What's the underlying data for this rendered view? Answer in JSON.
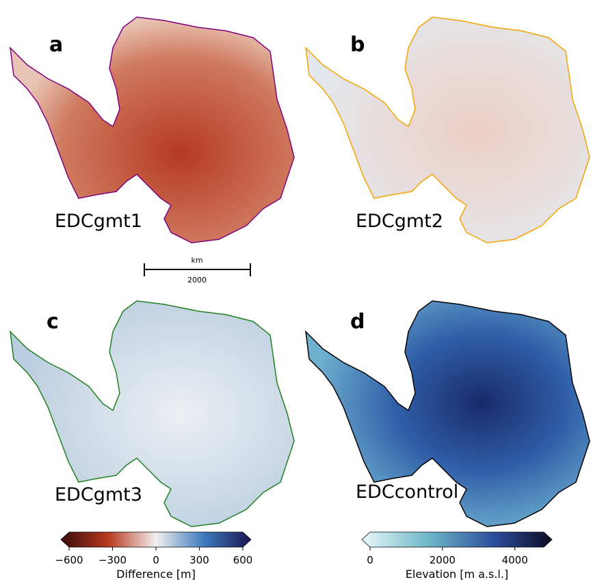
{
  "panels": [
    {
      "letter": "a",
      "label": "EDCgmt1"
    },
    {
      "letter": "b",
      "label": "EDCgmt2"
    },
    {
      "letter": "c",
      "label": "EDCgmt3"
    },
    {
      "letter": "d",
      "label": "EDCcontrol"
    }
  ],
  "scale_bar": {
    "unit": "km",
    "length": "2000"
  },
  "colorbars": [
    {
      "title": "Difference [m]",
      "lim": [
        -600,
        600
      ],
      "ticks": [
        {
          "value": -600,
          "label": "−600"
        },
        {
          "value": -300,
          "label": "−300"
        },
        0,
        300,
        600
      ]
    },
    {
      "title": "Elevation [m a.s.l.]",
      "lim": [
        0,
        4800
      ],
      "ticks": [
        0,
        2000,
        4000
      ]
    }
  ]
}
